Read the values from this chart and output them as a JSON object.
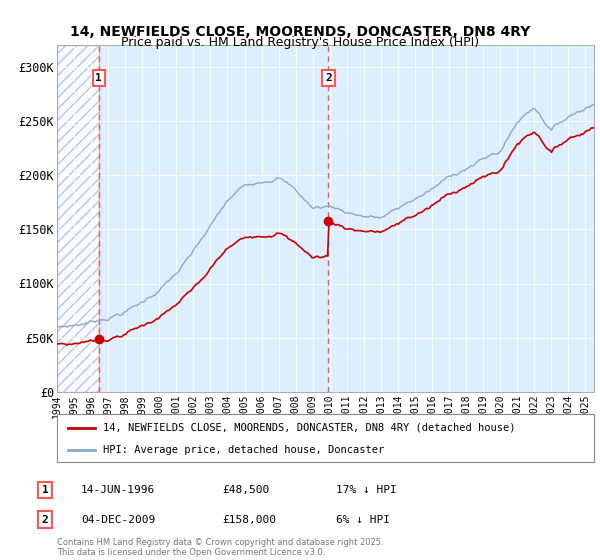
{
  "title1": "14, NEWFIELDS CLOSE, MOORENDS, DONCASTER, DN8 4RY",
  "title2": "Price paid vs. HM Land Registry's House Price Index (HPI)",
  "ylim": [
    0,
    320000
  ],
  "xlim_start": 1994.0,
  "xlim_end": 2025.5,
  "yticks": [
    0,
    50000,
    100000,
    150000,
    200000,
    250000,
    300000
  ],
  "ytick_labels": [
    "£0",
    "£50K",
    "£100K",
    "£150K",
    "£200K",
    "£250K",
    "£300K"
  ],
  "xticks": [
    1994,
    1995,
    1996,
    1997,
    1998,
    1999,
    2000,
    2001,
    2002,
    2003,
    2004,
    2005,
    2006,
    2007,
    2008,
    2009,
    2010,
    2011,
    2012,
    2013,
    2014,
    2015,
    2016,
    2017,
    2018,
    2019,
    2020,
    2021,
    2022,
    2023,
    2024,
    2025
  ],
  "hatch_end": 1996.45,
  "vline1_x": 1996.45,
  "vline2_x": 2009.92,
  "sale1_x": 1996.45,
  "sale1_y": 48500,
  "sale2_x": 2009.92,
  "sale2_y": 158000,
  "label1_text": "1",
  "label2_text": "2",
  "legend_red": "14, NEWFIELDS CLOSE, MOORENDS, DONCASTER, DN8 4RY (detached house)",
  "legend_blue": "HPI: Average price, detached house, Doncaster",
  "sale1_date": "14-JUN-1996",
  "sale1_price": "£48,500",
  "sale1_hpi": "17% ↓ HPI",
  "sale2_date": "04-DEC-2009",
  "sale2_price": "£158,000",
  "sale2_hpi": "6% ↓ HPI",
  "footer": "Contains HM Land Registry data © Crown copyright and database right 2025.\nThis data is licensed under the Open Government Licence v3.0.",
  "bg_color": "#ddeeff",
  "red_line_color": "#cc0000",
  "blue_line_color": "#88aacc",
  "vline_color": "#ff5555",
  "hpi_base_years": [
    1994,
    1995,
    1996,
    1997,
    1998,
    1999,
    2000,
    2001,
    2002,
    2003,
    2004,
    2005,
    2006,
    2007,
    2008,
    2009,
    2010,
    2011,
    2012,
    2013,
    2014,
    2015,
    2016,
    2017,
    2018,
    2019,
    2020,
    2021,
    2022,
    2023,
    2024,
    2025.4
  ],
  "hpi_base_vals": [
    60000,
    62000,
    65000,
    70000,
    76000,
    84000,
    96000,
    110000,
    128000,
    150000,
    172000,
    185000,
    192000,
    198000,
    185000,
    168000,
    170000,
    165000,
    162000,
    160000,
    167000,
    176000,
    184000,
    194000,
    204000,
    211000,
    218000,
    245000,
    260000,
    240000,
    252000,
    265000
  ]
}
